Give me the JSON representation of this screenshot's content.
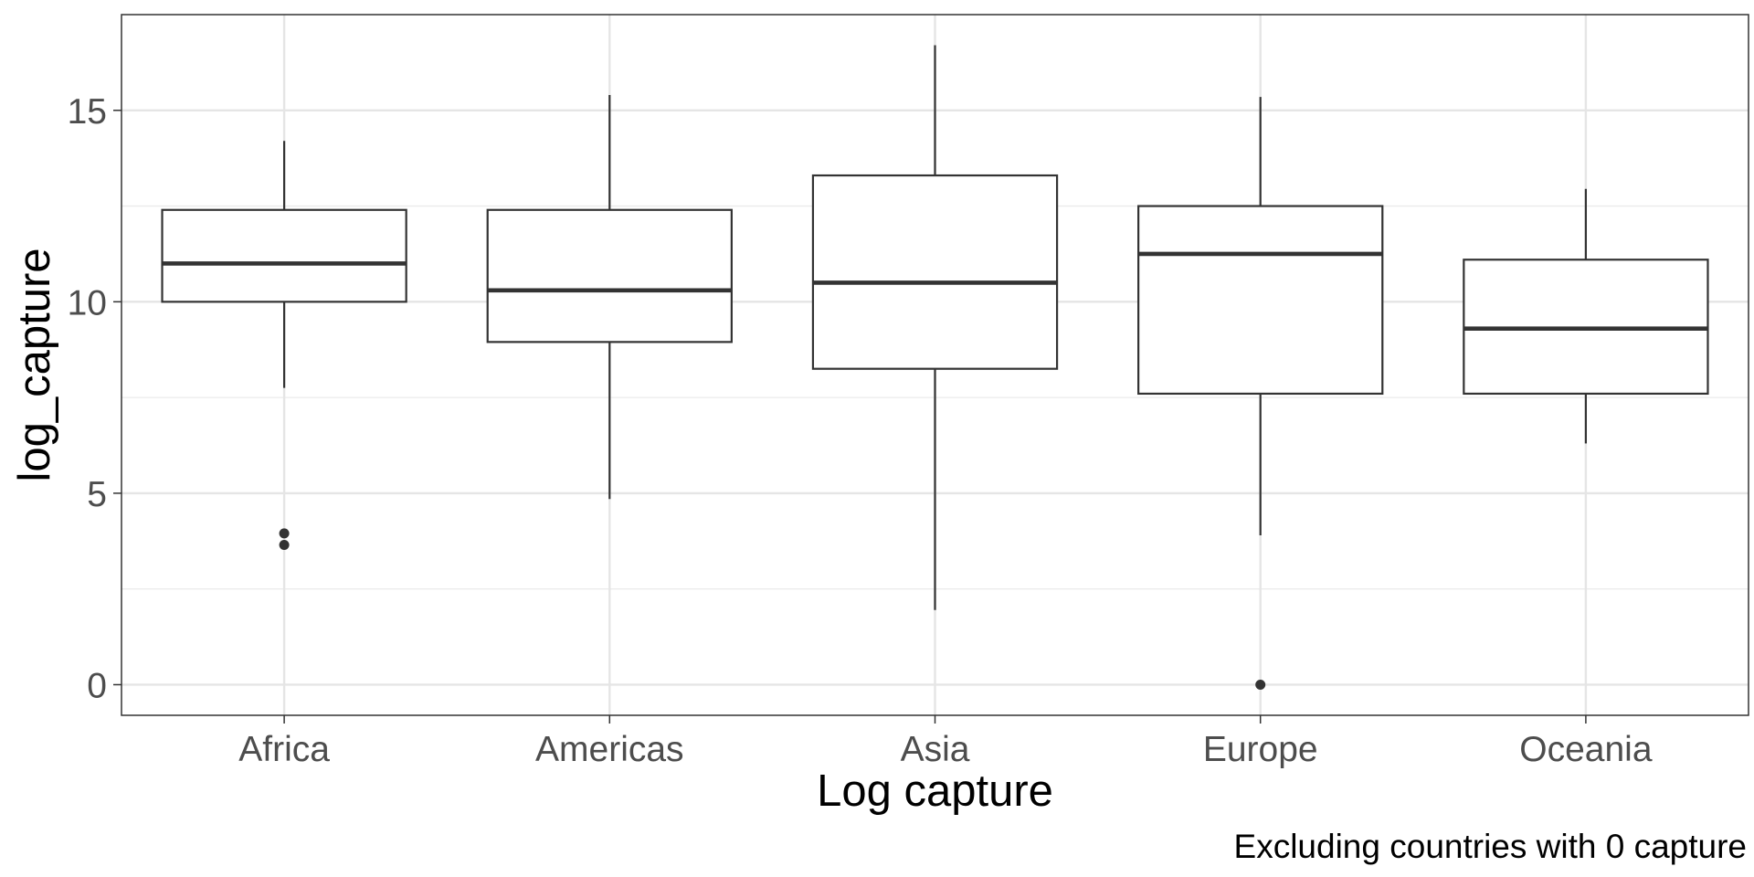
{
  "chart_data": {
    "type": "boxplot",
    "categories": [
      "Africa",
      "Americas",
      "Asia",
      "Europe",
      "Oceania"
    ],
    "boxes": [
      {
        "category": "Africa",
        "lower_whisker": 7.75,
        "q1": 10.0,
        "median": 11.0,
        "q3": 12.4,
        "upper_whisker": 14.2,
        "outliers": [
          3.95,
          3.65
        ]
      },
      {
        "category": "Americas",
        "lower_whisker": 4.85,
        "q1": 8.95,
        "median": 10.3,
        "q3": 12.4,
        "upper_whisker": 15.4,
        "outliers": []
      },
      {
        "category": "Asia",
        "lower_whisker": 1.95,
        "q1": 8.25,
        "median": 10.5,
        "q3": 13.3,
        "upper_whisker": 16.7,
        "outliers": []
      },
      {
        "category": "Europe",
        "lower_whisker": 3.9,
        "q1": 7.6,
        "median": 11.25,
        "q3": 12.5,
        "upper_whisker": 15.35,
        "outliers": [
          0.0
        ]
      },
      {
        "category": "Oceania",
        "lower_whisker": 6.3,
        "q1": 7.6,
        "median": 9.3,
        "q3": 11.1,
        "upper_whisker": 12.95,
        "outliers": []
      }
    ],
    "y_ticks": [
      0,
      5,
      10,
      15
    ],
    "ylim": [
      -0.8,
      17.5
    ],
    "xlabel": "Log capture",
    "ylabel": "log_capture",
    "caption": "Excluding countries with 0 capture",
    "grid": true,
    "theme": "bw"
  }
}
